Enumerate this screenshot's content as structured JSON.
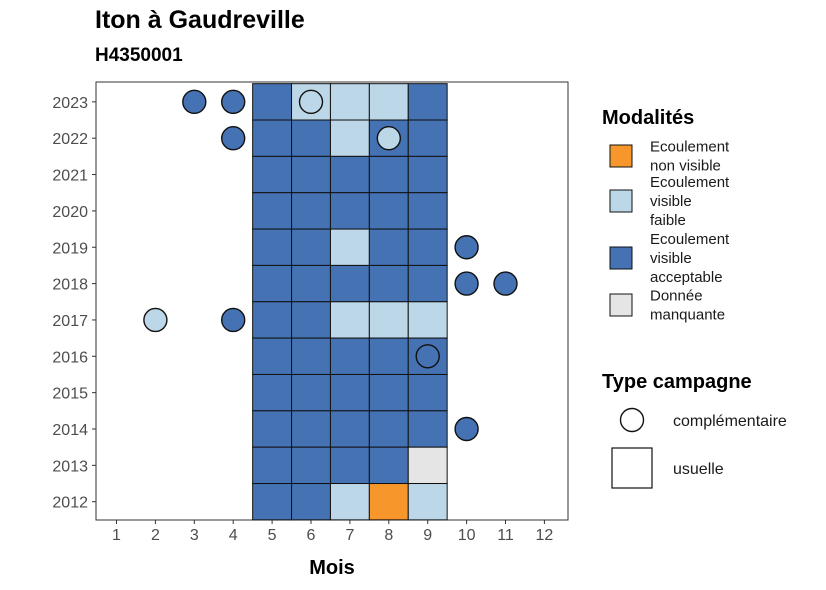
{
  "chart_data": {
    "type": "heatmap",
    "title": "Iton à Gaudreville",
    "subtitle": "H4350001",
    "xlabel": "Mois",
    "ylabel": "",
    "x_ticks": [
      "1",
      "2",
      "3",
      "4",
      "5",
      "6",
      "7",
      "8",
      "9",
      "10",
      "11",
      "12"
    ],
    "y_ticks": [
      "2012",
      "2013",
      "2014",
      "2015",
      "2016",
      "2017",
      "2018",
      "2019",
      "2020",
      "2021",
      "2022",
      "2023"
    ],
    "colors": {
      "Ecoulement non visible": "#F7962A",
      "Ecoulement visible faible": "#BCD8E8",
      "Ecoulement visible acceptable": "#4472B3",
      "Donnée manquante": "#E5E5E5"
    },
    "cells": [
      {
        "year": 2023,
        "month": 5,
        "modalite": "Ecoulement visible acceptable",
        "type": "usuelle"
      },
      {
        "year": 2023,
        "month": 6,
        "modalite": "Ecoulement visible faible",
        "type": "usuelle"
      },
      {
        "year": 2023,
        "month": 7,
        "modalite": "Ecoulement visible faible",
        "type": "usuelle"
      },
      {
        "year": 2023,
        "month": 8,
        "modalite": "Ecoulement visible faible",
        "type": "usuelle"
      },
      {
        "year": 2023,
        "month": 9,
        "modalite": "Ecoulement visible acceptable",
        "type": "usuelle"
      },
      {
        "year": 2022,
        "month": 5,
        "modalite": "Ecoulement visible acceptable",
        "type": "usuelle"
      },
      {
        "year": 2022,
        "month": 6,
        "modalite": "Ecoulement visible acceptable",
        "type": "usuelle"
      },
      {
        "year": 2022,
        "month": 7,
        "modalite": "Ecoulement visible faible",
        "type": "usuelle"
      },
      {
        "year": 2022,
        "month": 8,
        "modalite": "Ecoulement visible acceptable",
        "type": "usuelle"
      },
      {
        "year": 2022,
        "month": 9,
        "modalite": "Ecoulement visible acceptable",
        "type": "usuelle"
      },
      {
        "year": 2021,
        "month": 5,
        "modalite": "Ecoulement visible acceptable",
        "type": "usuelle"
      },
      {
        "year": 2021,
        "month": 6,
        "modalite": "Ecoulement visible acceptable",
        "type": "usuelle"
      },
      {
        "year": 2021,
        "month": 7,
        "modalite": "Ecoulement visible acceptable",
        "type": "usuelle"
      },
      {
        "year": 2021,
        "month": 8,
        "modalite": "Ecoulement visible acceptable",
        "type": "usuelle"
      },
      {
        "year": 2021,
        "month": 9,
        "modalite": "Ecoulement visible acceptable",
        "type": "usuelle"
      },
      {
        "year": 2020,
        "month": 5,
        "modalite": "Ecoulement visible acceptable",
        "type": "usuelle"
      },
      {
        "year": 2020,
        "month": 6,
        "modalite": "Ecoulement visible acceptable",
        "type": "usuelle"
      },
      {
        "year": 2020,
        "month": 7,
        "modalite": "Ecoulement visible acceptable",
        "type": "usuelle"
      },
      {
        "year": 2020,
        "month": 8,
        "modalite": "Ecoulement visible acceptable",
        "type": "usuelle"
      },
      {
        "year": 2020,
        "month": 9,
        "modalite": "Ecoulement visible acceptable",
        "type": "usuelle"
      },
      {
        "year": 2019,
        "month": 5,
        "modalite": "Ecoulement visible acceptable",
        "type": "usuelle"
      },
      {
        "year": 2019,
        "month": 6,
        "modalite": "Ecoulement visible acceptable",
        "type": "usuelle"
      },
      {
        "year": 2019,
        "month": 7,
        "modalite": "Ecoulement visible faible",
        "type": "usuelle"
      },
      {
        "year": 2019,
        "month": 8,
        "modalite": "Ecoulement visible acceptable",
        "type": "usuelle"
      },
      {
        "year": 2019,
        "month": 9,
        "modalite": "Ecoulement visible acceptable",
        "type": "usuelle"
      },
      {
        "year": 2018,
        "month": 5,
        "modalite": "Ecoulement visible acceptable",
        "type": "usuelle"
      },
      {
        "year": 2018,
        "month": 6,
        "modalite": "Ecoulement visible acceptable",
        "type": "usuelle"
      },
      {
        "year": 2018,
        "month": 7,
        "modalite": "Ecoulement visible acceptable",
        "type": "usuelle"
      },
      {
        "year": 2018,
        "month": 8,
        "modalite": "Ecoulement visible acceptable",
        "type": "usuelle"
      },
      {
        "year": 2018,
        "month": 9,
        "modalite": "Ecoulement visible acceptable",
        "type": "usuelle"
      },
      {
        "year": 2017,
        "month": 5,
        "modalite": "Ecoulement visible acceptable",
        "type": "usuelle"
      },
      {
        "year": 2017,
        "month": 6,
        "modalite": "Ecoulement visible acceptable",
        "type": "usuelle"
      },
      {
        "year": 2017,
        "month": 7,
        "modalite": "Ecoulement visible faible",
        "type": "usuelle"
      },
      {
        "year": 2017,
        "month": 8,
        "modalite": "Ecoulement visible faible",
        "type": "usuelle"
      },
      {
        "year": 2017,
        "month": 9,
        "modalite": "Ecoulement visible faible",
        "type": "usuelle"
      },
      {
        "year": 2016,
        "month": 5,
        "modalite": "Ecoulement visible acceptable",
        "type": "usuelle"
      },
      {
        "year": 2016,
        "month": 6,
        "modalite": "Ecoulement visible acceptable",
        "type": "usuelle"
      },
      {
        "year": 2016,
        "month": 7,
        "modalite": "Ecoulement visible acceptable",
        "type": "usuelle"
      },
      {
        "year": 2016,
        "month": 8,
        "modalite": "Ecoulement visible acceptable",
        "type": "usuelle"
      },
      {
        "year": 2016,
        "month": 9,
        "modalite": "Ecoulement visible acceptable",
        "type": "usuelle"
      },
      {
        "year": 2015,
        "month": 5,
        "modalite": "Ecoulement visible acceptable",
        "type": "usuelle"
      },
      {
        "year": 2015,
        "month": 6,
        "modalite": "Ecoulement visible acceptable",
        "type": "usuelle"
      },
      {
        "year": 2015,
        "month": 7,
        "modalite": "Ecoulement visible acceptable",
        "type": "usuelle"
      },
      {
        "year": 2015,
        "month": 8,
        "modalite": "Ecoulement visible acceptable",
        "type": "usuelle"
      },
      {
        "year": 2015,
        "month": 9,
        "modalite": "Ecoulement visible acceptable",
        "type": "usuelle"
      },
      {
        "year": 2014,
        "month": 5,
        "modalite": "Ecoulement visible acceptable",
        "type": "usuelle"
      },
      {
        "year": 2014,
        "month": 6,
        "modalite": "Ecoulement visible acceptable",
        "type": "usuelle"
      },
      {
        "year": 2014,
        "month": 7,
        "modalite": "Ecoulement visible acceptable",
        "type": "usuelle"
      },
      {
        "year": 2014,
        "month": 8,
        "modalite": "Ecoulement visible acceptable",
        "type": "usuelle"
      },
      {
        "year": 2014,
        "month": 9,
        "modalite": "Ecoulement visible acceptable",
        "type": "usuelle"
      },
      {
        "year": 2013,
        "month": 5,
        "modalite": "Ecoulement visible acceptable",
        "type": "usuelle"
      },
      {
        "year": 2013,
        "month": 6,
        "modalite": "Ecoulement visible acceptable",
        "type": "usuelle"
      },
      {
        "year": 2013,
        "month": 7,
        "modalite": "Ecoulement visible acceptable",
        "type": "usuelle"
      },
      {
        "year": 2013,
        "month": 8,
        "modalite": "Ecoulement visible acceptable",
        "type": "usuelle"
      },
      {
        "year": 2013,
        "month": 9,
        "modalite": "Donnée manquante",
        "type": "usuelle"
      },
      {
        "year": 2012,
        "month": 5,
        "modalite": "Ecoulement visible acceptable",
        "type": "usuelle"
      },
      {
        "year": 2012,
        "month": 6,
        "modalite": "Ecoulement visible acceptable",
        "type": "usuelle"
      },
      {
        "year": 2012,
        "month": 7,
        "modalite": "Ecoulement visible faible",
        "type": "usuelle"
      },
      {
        "year": 2012,
        "month": 8,
        "modalite": "Ecoulement non visible",
        "type": "usuelle"
      },
      {
        "year": 2012,
        "month": 9,
        "modalite": "Ecoulement visible faible",
        "type": "usuelle"
      },
      {
        "year": 2023,
        "month": 3,
        "modalite": "Ecoulement visible acceptable",
        "type": "complémentaire"
      },
      {
        "year": 2023,
        "month": 4,
        "modalite": "Ecoulement visible acceptable",
        "type": "complémentaire"
      },
      {
        "year": 2023,
        "month": 6,
        "modalite": "Ecoulement visible faible",
        "type": "complémentaire"
      },
      {
        "year": 2022,
        "month": 4,
        "modalite": "Ecoulement visible acceptable",
        "type": "complémentaire"
      },
      {
        "year": 2022,
        "month": 8,
        "modalite": "Ecoulement visible faible",
        "type": "complémentaire"
      },
      {
        "year": 2019,
        "month": 10,
        "modalite": "Ecoulement visible acceptable",
        "type": "complémentaire"
      },
      {
        "year": 2018,
        "month": 10,
        "modalite": "Ecoulement visible acceptable",
        "type": "complémentaire"
      },
      {
        "year": 2018,
        "month": 11,
        "modalite": "Ecoulement visible acceptable",
        "type": "complémentaire"
      },
      {
        "year": 2017,
        "month": 2,
        "modalite": "Ecoulement visible faible",
        "type": "complémentaire"
      },
      {
        "year": 2017,
        "month": 4,
        "modalite": "Ecoulement visible acceptable",
        "type": "complémentaire"
      },
      {
        "year": 2016,
        "month": 9,
        "modalite": "Ecoulement visible acceptable",
        "type": "complémentaire"
      },
      {
        "year": 2014,
        "month": 10,
        "modalite": "Ecoulement visible acceptable",
        "type": "complémentaire"
      }
    ],
    "legend": {
      "modalites_title": "Modalités",
      "modalites": [
        {
          "key": "Ecoulement non visible",
          "lines": [
            "Ecoulement",
            "non visible"
          ]
        },
        {
          "key": "Ecoulement visible faible",
          "lines": [
            "Ecoulement",
            "visible",
            "faible"
          ]
        },
        {
          "key": "Ecoulement visible acceptable",
          "lines": [
            "Ecoulement",
            "visible",
            "acceptable"
          ]
        },
        {
          "key": "Donnée manquante",
          "lines": [
            "Donnée",
            "manquante"
          ]
        }
      ],
      "type_title": "Type campagne",
      "types": [
        "complémentaire",
        "usuelle"
      ]
    }
  }
}
